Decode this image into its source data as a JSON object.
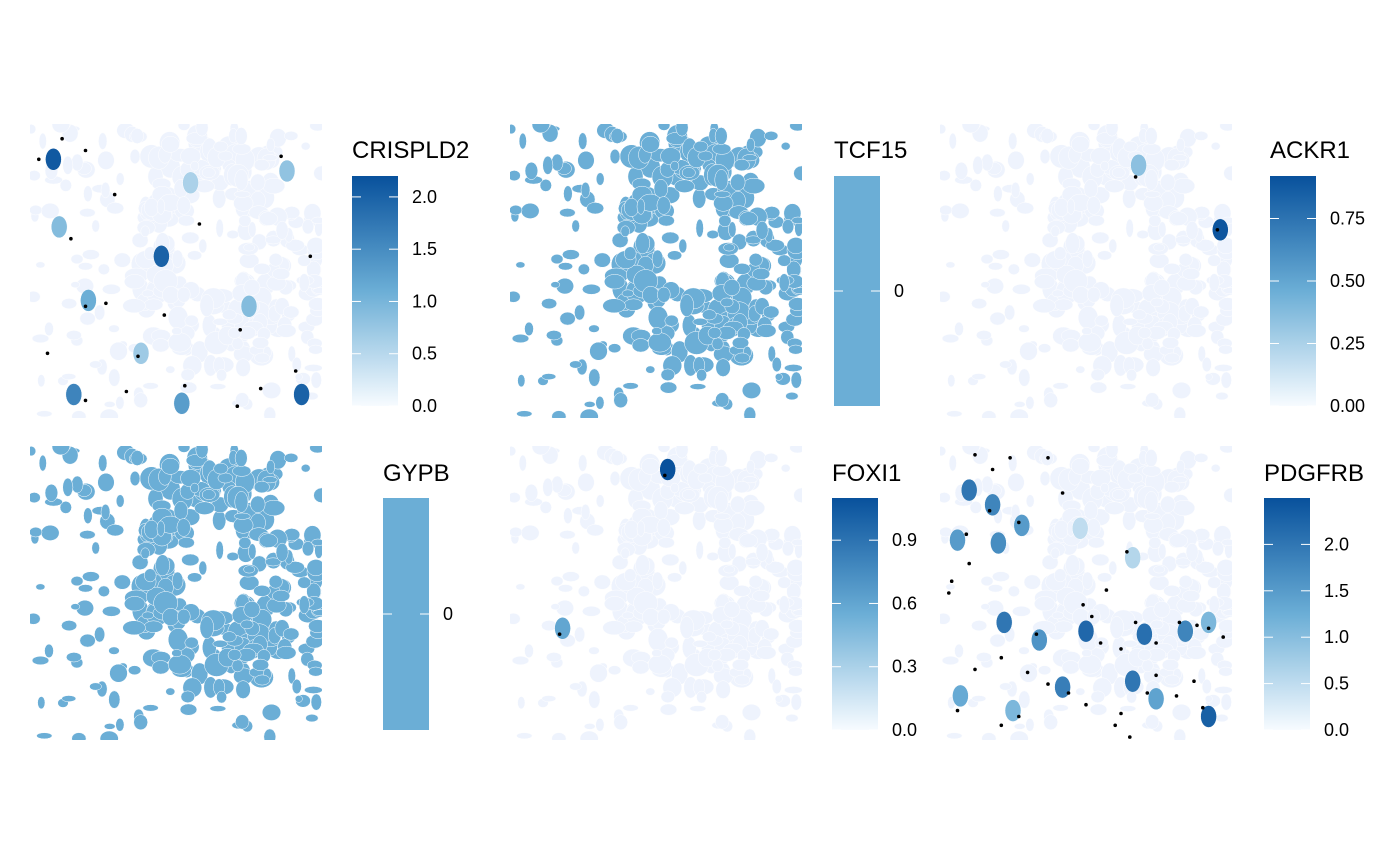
{
  "colors": {
    "low": "#f7fbff",
    "mid": "#6baed6",
    "high": "#08519c",
    "transcript_dot": "#000000"
  },
  "chart_data": [
    {
      "type": "heatmap",
      "title": "CRISPLD2",
      "value_range": [
        0,
        2.2
      ],
      "legend_ticks": [
        "0.0",
        "0.5",
        "1.0",
        "1.5",
        "2.0"
      ],
      "legend_tick_values": [
        0,
        0.5,
        1.0,
        1.5,
        2.0
      ],
      "constant_value": null,
      "cell_fill": "low",
      "highlighted_cells": [
        [
          0.08,
          0.12,
          2.1
        ],
        [
          0.45,
          0.45,
          2.0
        ],
        [
          0.93,
          0.92,
          2.0
        ],
        [
          0.88,
          0.16,
          0.8
        ],
        [
          0.55,
          0.2,
          0.6
        ],
        [
          0.1,
          0.35,
          0.9
        ],
        [
          0.2,
          0.6,
          1.1
        ],
        [
          0.75,
          0.62,
          0.9
        ],
        [
          0.38,
          0.78,
          0.7
        ],
        [
          0.52,
          0.95,
          1.3
        ],
        [
          0.15,
          0.92,
          1.6
        ]
      ],
      "dots": [
        [
          0.03,
          0.12
        ],
        [
          0.11,
          0.05
        ],
        [
          0.19,
          0.09
        ],
        [
          0.29,
          0.24
        ],
        [
          0.14,
          0.39
        ],
        [
          0.19,
          0.62
        ],
        [
          0.26,
          0.61
        ],
        [
          0.58,
          0.34
        ],
        [
          0.86,
          0.11
        ],
        [
          0.96,
          0.45
        ],
        [
          0.46,
          0.65
        ],
        [
          0.72,
          0.7
        ],
        [
          0.91,
          0.84
        ],
        [
          0.37,
          0.79
        ],
        [
          0.53,
          0.89
        ],
        [
          0.33,
          0.91
        ],
        [
          0.79,
          0.9
        ],
        [
          0.71,
          0.96
        ],
        [
          0.06,
          0.78
        ],
        [
          0.19,
          0.94
        ]
      ]
    },
    {
      "type": "heatmap",
      "title": "TCF15",
      "value_range": [
        0,
        0
      ],
      "legend_ticks": [
        "0"
      ],
      "legend_tick_values": [
        0
      ],
      "constant_value": 0,
      "cell_fill": "mid",
      "highlighted_cells": [],
      "dots": []
    },
    {
      "type": "heatmap",
      "title": "ACKR1",
      "value_range": [
        0,
        0.92
      ],
      "legend_ticks": [
        "0.00",
        "0.25",
        "0.50",
        "0.75"
      ],
      "legend_tick_values": [
        0,
        0.25,
        0.5,
        0.75
      ],
      "constant_value": null,
      "cell_fill": "low",
      "highlighted_cells": [
        [
          0.68,
          0.14,
          0.35
        ],
        [
          0.96,
          0.36,
          0.9
        ]
      ],
      "dots": [
        [
          0.67,
          0.18
        ],
        [
          0.95,
          0.36
        ]
      ]
    },
    {
      "type": "heatmap",
      "title": "GYPB",
      "value_range": [
        0,
        0
      ],
      "legend_ticks": [
        "0"
      ],
      "legend_tick_values": [
        0
      ],
      "constant_value": 0,
      "cell_fill": "mid",
      "highlighted_cells": [],
      "dots": []
    },
    {
      "type": "heatmap",
      "title": "FOXI1",
      "value_range": [
        0,
        1.1
      ],
      "legend_ticks": [
        "0.0",
        "0.3",
        "0.6",
        "0.9"
      ],
      "legend_tick_values": [
        0,
        0.3,
        0.6,
        0.9
      ],
      "constant_value": null,
      "cell_fill": "low",
      "highlighted_cells": [
        [
          0.54,
          0.08,
          1.1
        ],
        [
          0.18,
          0.62,
          0.6
        ]
      ],
      "dots": [
        [
          0.53,
          0.1
        ],
        [
          0.17,
          0.64
        ]
      ]
    },
    {
      "type": "heatmap",
      "title": "PDGFRB",
      "value_range": [
        0,
        2.5
      ],
      "legend_ticks": [
        "0.0",
        "0.5",
        "1.0",
        "1.5",
        "2.0"
      ],
      "legend_tick_values": [
        0,
        0.5,
        1.0,
        1.5,
        2.0
      ],
      "constant_value": null,
      "cell_fill": "low",
      "highlighted_cells": [
        [
          0.1,
          0.15,
          2.0
        ],
        [
          0.18,
          0.2,
          1.8
        ],
        [
          0.28,
          0.27,
          1.5
        ],
        [
          0.06,
          0.32,
          1.5
        ],
        [
          0.2,
          0.33,
          1.7
        ],
        [
          0.66,
          0.38,
          0.6
        ],
        [
          0.48,
          0.28,
          0.5
        ],
        [
          0.5,
          0.63,
          2.2
        ],
        [
          0.22,
          0.6,
          2.0
        ],
        [
          0.34,
          0.66,
          1.6
        ],
        [
          0.7,
          0.64,
          2.1
        ],
        [
          0.84,
          0.63,
          1.8
        ],
        [
          0.92,
          0.6,
          1.1
        ],
        [
          0.42,
          0.82,
          1.9
        ],
        [
          0.66,
          0.8,
          2.0
        ],
        [
          0.07,
          0.85,
          1.3
        ],
        [
          0.25,
          0.9,
          1.1
        ],
        [
          0.92,
          0.92,
          2.3
        ],
        [
          0.74,
          0.86,
          1.4
        ]
      ],
      "dots": [
        [
          0.12,
          0.03
        ],
        [
          0.18,
          0.08
        ],
        [
          0.24,
          0.04
        ],
        [
          0.37,
          0.04
        ],
        [
          0.42,
          0.16
        ],
        [
          0.17,
          0.22
        ],
        [
          0.27,
          0.26
        ],
        [
          0.09,
          0.3
        ],
        [
          0.04,
          0.46
        ],
        [
          0.03,
          0.5
        ],
        [
          0.1,
          0.4
        ],
        [
          0.64,
          0.36
        ],
        [
          0.57,
          0.49
        ],
        [
          0.49,
          0.54
        ],
        [
          0.52,
          0.58
        ],
        [
          0.67,
          0.6
        ],
        [
          0.82,
          0.6
        ],
        [
          0.88,
          0.61
        ],
        [
          0.92,
          0.62
        ],
        [
          0.97,
          0.65
        ],
        [
          0.55,
          0.67
        ],
        [
          0.62,
          0.69
        ],
        [
          0.74,
          0.67
        ],
        [
          0.33,
          0.64
        ],
        [
          0.21,
          0.72
        ],
        [
          0.3,
          0.77
        ],
        [
          0.37,
          0.81
        ],
        [
          0.44,
          0.84
        ],
        [
          0.5,
          0.88
        ],
        [
          0.62,
          0.91
        ],
        [
          0.71,
          0.84
        ],
        [
          0.74,
          0.78
        ],
        [
          0.81,
          0.85
        ],
        [
          0.87,
          0.8
        ],
        [
          0.9,
          0.89
        ],
        [
          0.27,
          0.92
        ],
        [
          0.21,
          0.95
        ],
        [
          0.6,
          0.95
        ],
        [
          0.65,
          0.99
        ],
        [
          0.06,
          0.9
        ],
        [
          0.12,
          0.76
        ]
      ]
    }
  ]
}
